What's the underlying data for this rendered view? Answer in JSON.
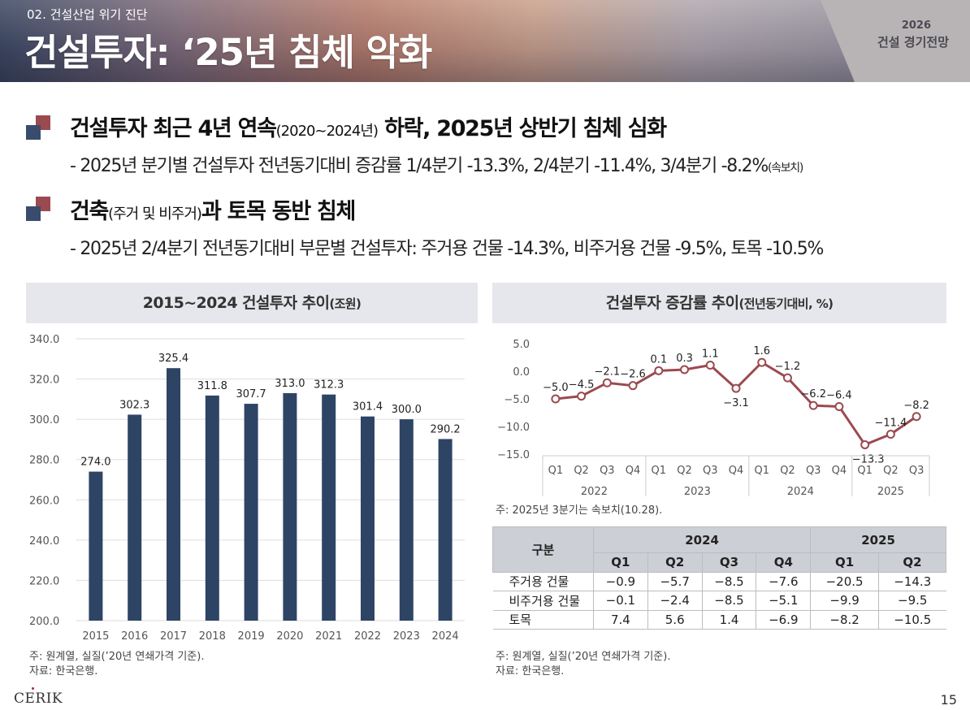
{
  "header": {
    "section_label": "02. 건설산업 위기 진단",
    "title": "건설투자: ‘25년 침체 악화",
    "brand_year": "2026",
    "brand_name": "건설 경기전망"
  },
  "point1": {
    "head_a": "건설투자 최근 4년 연속",
    "head_b": "(2020~2024년)",
    "head_c": " 하락, 2025년 상반기 침체 심화",
    "sub_a": "- 2025년 분기별 건설투자 전년동기대비 증감률 1/4분기 -13.3%, 2/4분기 -11.4%, 3/4분기 -8.2%",
    "sub_b": "(속보치)"
  },
  "point2": {
    "head_a": "건축",
    "head_b": "(주거 및 비주거)",
    "head_c": "과 토목 동반 침체",
    "sub": "- 2025년 2/4분기 전년동기대비 부문별 건설투자: 주거용 건물 -14.3%, 비주거용 건물 -9.5%, 토목 -10.5%"
  },
  "left_panel": {
    "title_main": "2015~2024 건설투자 추이",
    "title_unit": "(조원)",
    "note1": "주: 원계열, 실질(’20년 연쇄가격 기준).",
    "note2": "자료: 한국은행."
  },
  "right_panel": {
    "title_main": "건설투자 증감률 추이",
    "title_unit": "(전년동기대비, %)",
    "chart_note": "주: 2025년 3분기는 속보치(10.28).",
    "note1": "주: 원계열, 실질(’20년 연쇄가격 기준).",
    "note2": "자료: 한국은행."
  },
  "colors": {
    "bar": "#2e4465",
    "line": "#9b4a50",
    "grid": "#dddddd"
  },
  "chart_data": [
    {
      "type": "bar",
      "title": "2015~2024 건설투자 추이(조원)",
      "categories": [
        "2015",
        "2016",
        "2017",
        "2018",
        "2019",
        "2020",
        "2021",
        "2022",
        "2023",
        "2024"
      ],
      "values": [
        274.0,
        302.3,
        325.4,
        311.8,
        307.7,
        313.0,
        312.3,
        301.4,
        300.0,
        290.2
      ],
      "labels": [
        "274.0",
        "302.3",
        "325.4",
        "311.8",
        "307.7",
        "313.0",
        "312.3",
        "301.4",
        "300.0",
        "290.2"
      ],
      "ylim": [
        200,
        340
      ],
      "yticks": [
        "200.0",
        "220.0",
        "240.0",
        "260.0",
        "280.0",
        "300.0",
        "320.0",
        "340.0"
      ],
      "ytick_values": [
        200,
        220,
        240,
        260,
        280,
        300,
        320,
        340
      ]
    },
    {
      "type": "line",
      "title": "건설투자 증감률 추이(전년동기대비, %)",
      "quarters": [
        "Q1",
        "Q2",
        "Q3",
        "Q4",
        "Q1",
        "Q2",
        "Q3",
        "Q4",
        "Q1",
        "Q2",
        "Q3",
        "Q4",
        "Q1",
        "Q2",
        "Q3"
      ],
      "years": [
        "2022",
        "2023",
        "2024",
        "2025"
      ],
      "values": [
        -5.0,
        -4.5,
        -2.1,
        -2.6,
        0.1,
        0.3,
        1.1,
        -3.1,
        1.6,
        -1.2,
        -6.2,
        -6.4,
        -13.3,
        -11.4,
        -8.2
      ],
      "labels": [
        "−5.0",
        "−4.5",
        "−2.1",
        "−2.6",
        "0.1",
        "0.3",
        "1.1",
        "−3.1",
        "1.6",
        "−1.2",
        "−6.2",
        "−6.4",
        "−13.3",
        "−11.4",
        "−8.2"
      ],
      "ylim": [
        -15,
        5
      ],
      "yticks": [
        "5.0",
        "0.0",
        "−5.0",
        "−10.0",
        "−15.0"
      ],
      "ytick_values": [
        5,
        0,
        -5,
        -10,
        -15
      ]
    }
  ],
  "table": {
    "corner": "구분",
    "year_headers": [
      "2024",
      "2025"
    ],
    "quarter_headers": [
      "Q1",
      "Q2",
      "Q3",
      "Q4",
      "Q1",
      "Q2"
    ],
    "rows": [
      {
        "label": "주거용 건물",
        "cells": [
          "−0.9",
          "−5.7",
          "−8.5",
          "−7.6",
          "−20.5",
          "−14.3"
        ]
      },
      {
        "label": "비주거용 건물",
        "cells": [
          "−0.1",
          "−2.4",
          "−8.5",
          "−5.1",
          "−9.9",
          "−9.5"
        ]
      },
      {
        "label": "토목",
        "cells": [
          "7.4",
          "5.6",
          "1.4",
          "−6.9",
          "−8.2",
          "−10.5"
        ]
      }
    ]
  },
  "footer": {
    "logo": "CERIK",
    "page_number": "15"
  }
}
